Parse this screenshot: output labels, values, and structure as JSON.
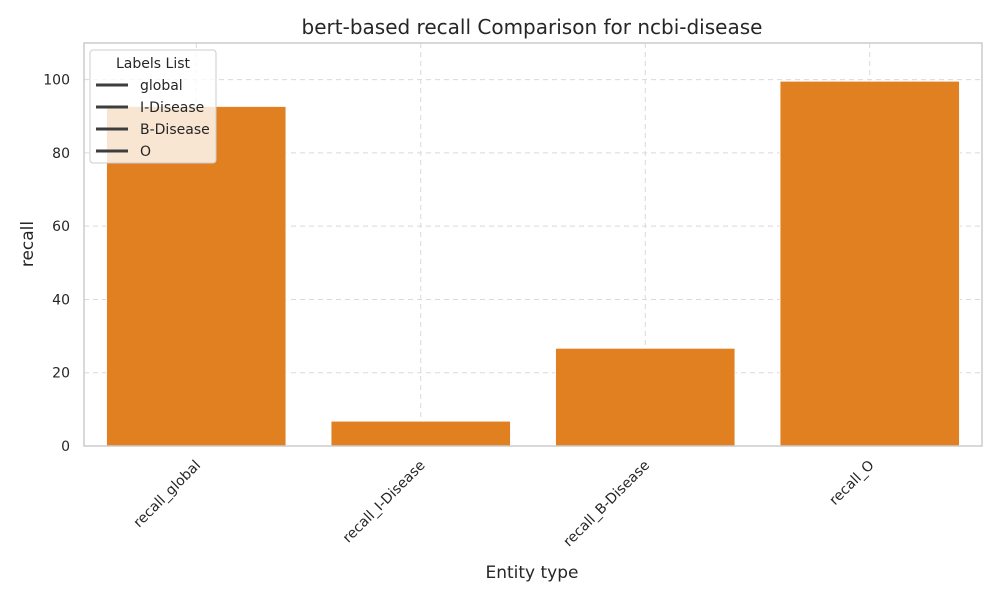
{
  "chart_data": {
    "type": "bar",
    "title": "bert-based  recall Comparison for ncbi-disease",
    "xlabel": "Entity type",
    "ylabel": "recall",
    "categories": [
      "recall_global",
      "recall_I-Disease",
      "recall_B-Disease",
      "recall_O"
    ],
    "values": [
      92.7,
      6.8,
      26.7,
      99.6
    ],
    "ylim": [
      0,
      110
    ],
    "yticks": [
      0,
      20,
      40,
      60,
      80,
      100
    ],
    "grid": true,
    "bar_color": "#e08020",
    "legend": {
      "title": "Labels List",
      "placement": "top-left",
      "entries": [
        "global",
        "I-Disease",
        "B-Disease",
        "O"
      ],
      "line_color": "#3d3d3d"
    }
  }
}
